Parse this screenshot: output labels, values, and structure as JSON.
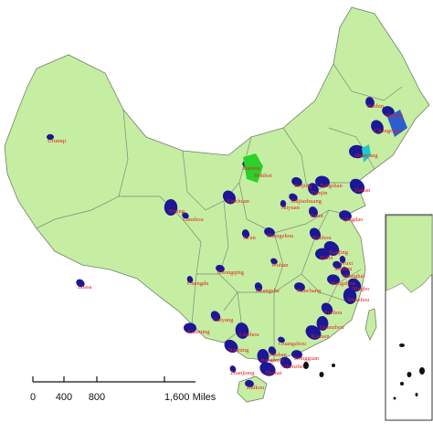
{
  "cities": [
    {
      "label": "Urumqi"
    },
    {
      "label": "Lhasa"
    },
    {
      "label": "Harbin"
    },
    {
      "label": "Daqing"
    },
    {
      "label": "Changchun"
    },
    {
      "label": "Shenyang"
    },
    {
      "label": "Baotou"
    },
    {
      "label": "Hohhot"
    },
    {
      "label": "Beijing"
    },
    {
      "label": "Tianjin"
    },
    {
      "label": "Tangshan"
    },
    {
      "label": "Dalian"
    },
    {
      "label": "Taiyuan"
    },
    {
      "label": "Shijiazhuang"
    },
    {
      "label": "Jinan"
    },
    {
      "label": "Qingdao"
    },
    {
      "label": "Yinchuan"
    },
    {
      "label": "Xining"
    },
    {
      "label": "Lanzhou"
    },
    {
      "label": "Xi'an"
    },
    {
      "label": "Zhengzhou"
    },
    {
      "label": "Xuzhou"
    },
    {
      "label": "Hefei"
    },
    {
      "label": "Nanjing"
    },
    {
      "label": "Wuxi"
    },
    {
      "label": "Suzhou"
    },
    {
      "label": "Shanghai"
    },
    {
      "label": "Hangzhou"
    },
    {
      "label": "Ningbo"
    },
    {
      "label": "Wenzhou"
    },
    {
      "label": "Wuhan"
    },
    {
      "label": "Changsha"
    },
    {
      "label": "Nanchang"
    },
    {
      "label": "Fuzhou"
    },
    {
      "label": "Quanzhou"
    },
    {
      "label": "Xiamen"
    },
    {
      "label": "Chengdu"
    },
    {
      "label": "Chongqing"
    },
    {
      "label": "Guiyang"
    },
    {
      "label": "Kunming"
    },
    {
      "label": "Nanning"
    },
    {
      "label": "Liuzhou"
    },
    {
      "label": "Guangzhou"
    },
    {
      "label": "Foshan"
    },
    {
      "label": "Dongguan"
    },
    {
      "label": "Shenzhen"
    },
    {
      "label": "Jiangmen"
    },
    {
      "label": "Zhuhai"
    },
    {
      "label": "Zhanjiang"
    },
    {
      "label": "Haikou"
    }
  ],
  "scale_bar": {
    "labels": [
      "0",
      "400",
      "800",
      "1,600 Miles"
    ]
  }
}
